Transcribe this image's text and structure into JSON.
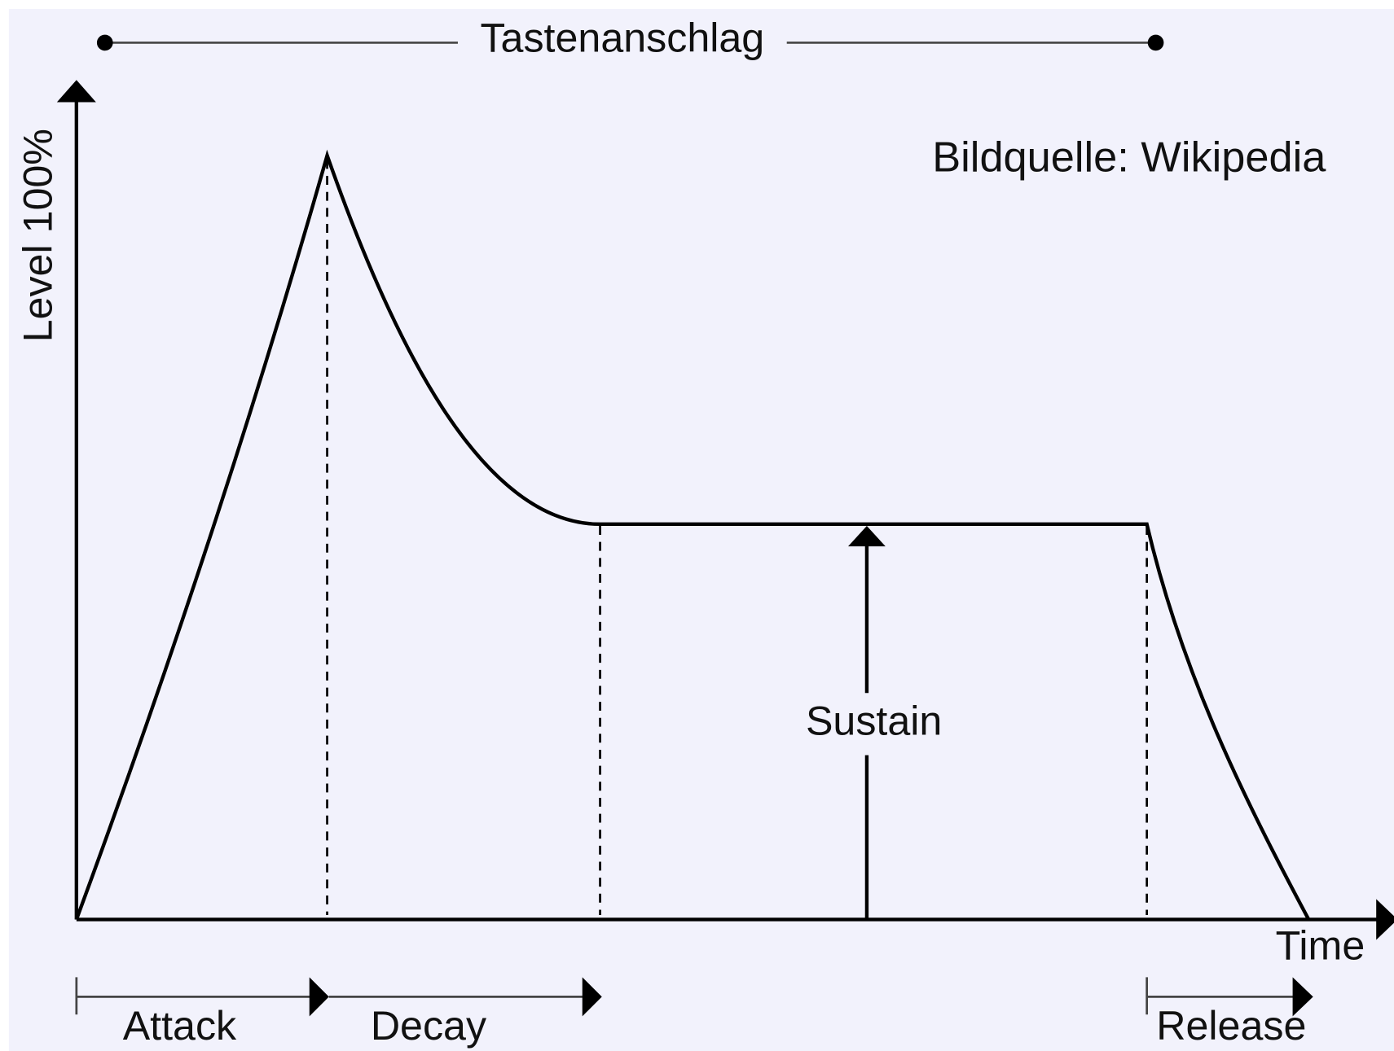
{
  "title": "Tastenanschlag",
  "y_axis_label": "Level 100%",
  "x_axis_label": "Time",
  "source": "Bildquelle: Wikipedia",
  "phases": {
    "attack": "Attack",
    "decay": "Decay",
    "sustain": "Sustain",
    "release": "Release"
  }
}
